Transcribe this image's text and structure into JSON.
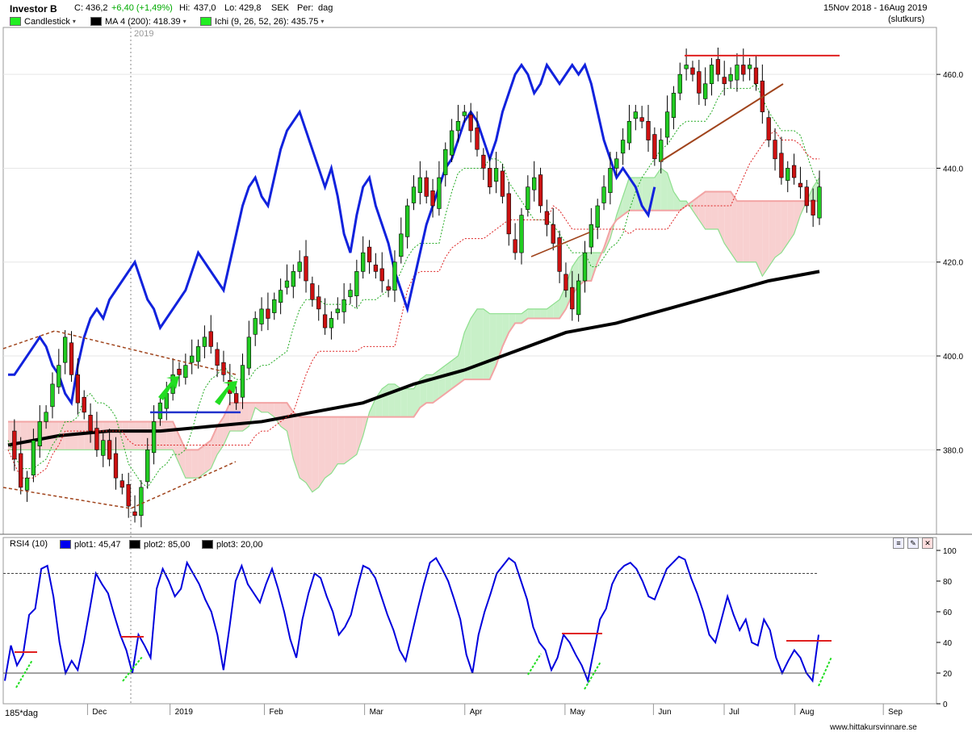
{
  "header": {
    "ticker": "Investor B",
    "close_label": "C:",
    "close_value": "436,2",
    "change": "+6,40 (+1,49%)",
    "high_label": "Hi:",
    "high_value": "437,0",
    "low_label": "Lo:",
    "low_value": "429,8",
    "currency": "SEK",
    "period_label": "Per:",
    "period_value": "dag",
    "date_range": "15Nov 2018 - 16Aug 2019",
    "price_type": "(slutkurs)"
  },
  "legend": {
    "items": [
      {
        "label": "Candlestick",
        "color": "#22ee22"
      },
      {
        "label": "MA 4 (200): 418.39",
        "color": "#000000"
      },
      {
        "label": "Ichi (9, 26, 52, 26): 435.75",
        "color": "#22ee22"
      }
    ]
  },
  "rsi_panel": {
    "title": "RSI4 (10)",
    "plots": [
      {
        "label": "plot1: 45,47",
        "color": "#0000ee"
      },
      {
        "label": "plot2: 85,00",
        "color": "#000000"
      },
      {
        "label": "plot3: 20,00",
        "color": "#000000"
      }
    ]
  },
  "footer": {
    "bar_count": "185*dag",
    "watermark": "www.hittakursvinnare.se",
    "year_marker": "2019"
  },
  "colors": {
    "up": "#22cc22",
    "down": "#cc1111",
    "rsi_line": "#0000dd",
    "ma": "#000000",
    "cloud_bull": "#c8f0c8",
    "cloud_bear": "#f8d0d0"
  },
  "chart_data": [
    {
      "type": "candlestick",
      "title": "Investor B",
      "x_tick_labels": [
        "Dec",
        "2019",
        "Feb",
        "Mar",
        "Apr",
        "May",
        "Jun",
        "Jul",
        "Aug",
        "Sep"
      ],
      "y_tick_labels": [
        "380.0",
        "400.0",
        "420.0",
        "440.0",
        "460.0"
      ],
      "ylim": [
        362,
        470
      ],
      "grid": true,
      "series": [
        {
          "name": "Candlestick",
          "close_approx": [
            384,
            378,
            372,
            374,
            382,
            386,
            388,
            394,
            398,
            404,
            396,
            390,
            388,
            384,
            380,
            382,
            378,
            374,
            372,
            368,
            366,
            372,
            380,
            386,
            390,
            392,
            396,
            396,
            398,
            400,
            402,
            404,
            402,
            398,
            396,
            392,
            390,
            398,
            404,
            408,
            410,
            408,
            412,
            414,
            416,
            418,
            420,
            416,
            412,
            410,
            406,
            408,
            410,
            412,
            414,
            418,
            422,
            420,
            418,
            416,
            414,
            420,
            426,
            432,
            436,
            438,
            434,
            432,
            438,
            444,
            448,
            450,
            452,
            448,
            444,
            440,
            436,
            440,
            434,
            426,
            422,
            430,
            436,
            438,
            432,
            428,
            424,
            418,
            414,
            410,
            416,
            422,
            428,
            432,
            436,
            440,
            442,
            446,
            450,
            452,
            450,
            446,
            442,
            446,
            452,
            456,
            460,
            462,
            460,
            456,
            458,
            462,
            460,
            458,
            460,
            462,
            460,
            462,
            458,
            452,
            446,
            442,
            438,
            440,
            438,
            436,
            432,
            430,
            436
          ]
        },
        {
          "name": "MA 4 (200)",
          "values_approx": [
            381,
            383,
            384,
            384,
            385,
            386,
            388,
            390,
            394,
            397,
            401,
            405,
            407,
            410,
            413,
            416,
            418
          ]
        },
        {
          "name": "Ichi (9, 26, 52, 26)",
          "last": 435.75
        }
      ],
      "annotations": [
        {
          "label": "resistance",
          "y": 464
        },
        {
          "label": "support",
          "y": 388
        }
      ]
    },
    {
      "type": "line",
      "title": "RSI4 (10)",
      "ylim": [
        0,
        100
      ],
      "y_tick_labels": [
        "0",
        "20",
        "40",
        "60",
        "80",
        "100"
      ],
      "series": [
        {
          "name": "plot1",
          "values": [
            15,
            38,
            25,
            32,
            58,
            62,
            88,
            90,
            70,
            40,
            20,
            28,
            22,
            40,
            62,
            85,
            78,
            72,
            58,
            45,
            35,
            20,
            45,
            38,
            30,
            75,
            88,
            80,
            70,
            75,
            92,
            85,
            78,
            68,
            60,
            45,
            22,
            50,
            80,
            90,
            78,
            72,
            66,
            78,
            88,
            75,
            60,
            42,
            30,
            55,
            72,
            85,
            82,
            70,
            60,
            45,
            50,
            58,
            75,
            90,
            88,
            82,
            70,
            58,
            48,
            35,
            28,
            45,
            62,
            78,
            92,
            95,
            88,
            80,
            68,
            55,
            32,
            20,
            45,
            60,
            72,
            85,
            90,
            95,
            92,
            80,
            68,
            50,
            40,
            35,
            22,
            30,
            45,
            40,
            32,
            25,
            15,
            35,
            55,
            62,
            78,
            86,
            90,
            92,
            88,
            80,
            70,
            68,
            78,
            88,
            92,
            96,
            94,
            82,
            72,
            60,
            45,
            40,
            55,
            70,
            58,
            48,
            55,
            40,
            38,
            55,
            48,
            30,
            20,
            28,
            35,
            30,
            20,
            15,
            45
          ]
        },
        {
          "name": "plot2",
          "values": [
            85
          ]
        },
        {
          "name": "plot3",
          "values": [
            20
          ]
        }
      ]
    }
  ]
}
